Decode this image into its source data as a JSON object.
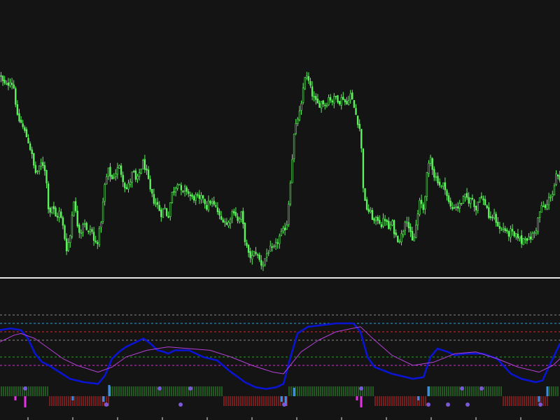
{
  "colors": {
    "background": "#141414",
    "candle": "#5cf25c",
    "separator": "#e6e6e6",
    "oscillator_main": "#0a14d2",
    "oscillator_signal": "#b440d8",
    "level_upper_red": "#c83232",
    "level_upper_blue": "#3c9ed2",
    "level_gray": "#8a8a8a",
    "level_green": "#2f9a2f",
    "level_magenta": "#c83cc8",
    "hist_green": "#2f9a2f",
    "hist_red": "#d22a2a",
    "hist_blue": "#3c8ee6",
    "hist_magenta": "#e632e6",
    "dot": "#7a58d6"
  },
  "chart_data": [
    {
      "type": "candlestick",
      "panel": "price",
      "title": "",
      "grid": false,
      "ylim": [
        0,
        100
      ],
      "series": [
        {
          "values": [
            [
              0,
              88
            ],
            [
              5,
              84
            ],
            [
              10,
              83
            ],
            [
              15,
              86
            ],
            [
              20,
              82
            ],
            [
              25,
              68
            ],
            [
              30,
              66
            ],
            [
              35,
              62
            ],
            [
              40,
              58
            ],
            [
              45,
              52
            ],
            [
              50,
              43
            ],
            [
              55,
              44
            ],
            [
              60,
              48
            ],
            [
              65,
              44
            ],
            [
              70,
              24
            ],
            [
              75,
              28
            ],
            [
              80,
              22
            ],
            [
              85,
              25
            ],
            [
              90,
              18
            ],
            [
              95,
              8
            ],
            [
              100,
              13
            ],
            [
              105,
              32
            ],
            [
              110,
              20
            ],
            [
              115,
              15
            ],
            [
              120,
              22
            ],
            [
              125,
              14
            ],
            [
              130,
              18
            ],
            [
              135,
              10
            ],
            [
              140,
              12
            ],
            [
              145,
              22
            ],
            [
              150,
              38
            ],
            [
              155,
              44
            ],
            [
              160,
              40
            ],
            [
              165,
              43
            ],
            [
              170,
              46
            ],
            [
              175,
              41
            ],
            [
              180,
              35
            ],
            [
              185,
              38
            ],
            [
              190,
              44
            ],
            [
              195,
              38
            ],
            [
              200,
              44
            ],
            [
              205,
              48
            ],
            [
              210,
              42
            ],
            [
              215,
              34
            ],
            [
              220,
              30
            ],
            [
              225,
              28
            ],
            [
              230,
              24
            ],
            [
              235,
              27
            ],
            [
              240,
              22
            ],
            [
              245,
              33
            ],
            [
              250,
              36
            ],
            [
              255,
              40
            ],
            [
              260,
              32
            ],
            [
              265,
              36
            ],
            [
              270,
              33
            ],
            [
              275,
              31
            ],
            [
              280,
              32
            ],
            [
              285,
              30
            ],
            [
              290,
              32
            ],
            [
              295,
              27
            ],
            [
              300,
              30
            ],
            [
              305,
              28
            ],
            [
              310,
              26
            ],
            [
              315,
              21
            ],
            [
              320,
              22
            ],
            [
              325,
              18
            ],
            [
              330,
              24
            ],
            [
              335,
              26
            ],
            [
              340,
              20
            ],
            [
              345,
              24
            ],
            [
              350,
              12
            ],
            [
              355,
              5
            ],
            [
              360,
              4
            ],
            [
              365,
              7
            ],
            [
              370,
              3
            ],
            [
              375,
              0
            ],
            [
              380,
              5
            ],
            [
              385,
              8
            ],
            [
              390,
              7
            ],
            [
              395,
              10
            ],
            [
              400,
              14
            ],
            [
              405,
              16
            ],
            [
              410,
              20
            ],
            [
              415,
              40
            ],
            [
              420,
              60
            ],
            [
              425,
              68
            ],
            [
              430,
              72
            ],
            [
              435,
              88
            ],
            [
              440,
              86
            ],
            [
              445,
              80
            ],
            [
              450,
              76
            ],
            [
              455,
              74
            ],
            [
              460,
              76
            ],
            [
              465,
              74
            ],
            [
              470,
              78
            ],
            [
              475,
              76
            ],
            [
              480,
              78
            ],
            [
              485,
              76
            ],
            [
              490,
              78
            ],
            [
              495,
              74
            ],
            [
              500,
              80
            ],
            [
              505,
              74
            ],
            [
              510,
              68
            ],
            [
              515,
              62
            ],
            [
              520,
              30
            ],
            [
              525,
              26
            ],
            [
              530,
              24
            ],
            [
              535,
              20
            ],
            [
              540,
              22
            ],
            [
              545,
              19
            ],
            [
              550,
              22
            ],
            [
              555,
              17
            ],
            [
              560,
              20
            ],
            [
              565,
              14
            ],
            [
              570,
              12
            ],
            [
              575,
              15
            ],
            [
              580,
              24
            ],
            [
              585,
              16
            ],
            [
              590,
              10
            ],
            [
              595,
              20
            ],
            [
              600,
              30
            ],
            [
              605,
              26
            ],
            [
              610,
              42
            ],
            [
              615,
              50
            ],
            [
              620,
              42
            ],
            [
              625,
              40
            ],
            [
              630,
              36
            ],
            [
              635,
              38
            ],
            [
              640,
              30
            ],
            [
              645,
              26
            ],
            [
              650,
              28
            ],
            [
              655,
              27
            ],
            [
              660,
              30
            ],
            [
              665,
              32
            ],
            [
              670,
              30
            ],
            [
              675,
              31
            ],
            [
              680,
              26
            ],
            [
              685,
              33
            ],
            [
              690,
              30
            ],
            [
              695,
              28
            ],
            [
              700,
              20
            ],
            [
              705,
              24
            ],
            [
              710,
              20
            ],
            [
              715,
              16
            ],
            [
              720,
              18
            ],
            [
              725,
              14
            ],
            [
              730,
              16
            ],
            [
              735,
              13
            ],
            [
              740,
              14
            ],
            [
              745,
              11
            ],
            [
              750,
              14
            ],
            [
              755,
              12
            ],
            [
              760,
              14
            ],
            [
              765,
              16
            ],
            [
              770,
              24
            ],
            [
              775,
              28
            ],
            [
              780,
              26
            ],
            [
              785,
              32
            ],
            [
              790,
              34
            ],
            [
              795,
              42
            ],
            [
              800,
              38
            ]
          ]
        }
      ]
    },
    {
      "type": "line",
      "panel": "oscillator",
      "title": "",
      "grid": false,
      "ylim": [
        0,
        100
      ],
      "levels": [
        90,
        80,
        70,
        60,
        40,
        30
      ],
      "series": [
        {
          "color_key": "oscillator_main",
          "values": [
            [
              0,
              72
            ],
            [
              15,
              74
            ],
            [
              30,
              72
            ],
            [
              40,
              62
            ],
            [
              50,
              44
            ],
            [
              60,
              34
            ],
            [
              70,
              30
            ],
            [
              85,
              22
            ],
            [
              100,
              14
            ],
            [
              120,
              10
            ],
            [
              140,
              8
            ],
            [
              150,
              18
            ],
            [
              160,
              38
            ],
            [
              170,
              46
            ],
            [
              180,
              52
            ],
            [
              195,
              58
            ],
            [
              205,
              62
            ],
            [
              215,
              56
            ],
            [
              225,
              48
            ],
            [
              235,
              46
            ],
            [
              240,
              44
            ],
            [
              250,
              48
            ],
            [
              270,
              48
            ],
            [
              290,
              40
            ],
            [
              310,
              36
            ],
            [
              330,
              22
            ],
            [
              350,
              10
            ],
            [
              365,
              4
            ],
            [
              380,
              2
            ],
            [
              395,
              4
            ],
            [
              405,
              8
            ],
            [
              415,
              40
            ],
            [
              425,
              68
            ],
            [
              440,
              76
            ],
            [
              460,
              78
            ],
            [
              480,
              80
            ],
            [
              505,
              80
            ],
            [
              515,
              70
            ],
            [
              525,
              40
            ],
            [
              535,
              28
            ],
            [
              560,
              20
            ],
            [
              590,
              14
            ],
            [
              605,
              16
            ],
            [
              615,
              40
            ],
            [
              625,
              50
            ],
            [
              640,
              46
            ],
            [
              650,
              42
            ],
            [
              665,
              44
            ],
            [
              690,
              44
            ],
            [
              710,
              38
            ],
            [
              730,
              20
            ],
            [
              745,
              14
            ],
            [
              765,
              10
            ],
            [
              775,
              12
            ],
            [
              785,
              30
            ],
            [
              800,
              56
            ]
          ]
        },
        {
          "color_key": "oscillator_signal",
          "values": [
            [
              0,
              58
            ],
            [
              20,
              66
            ],
            [
              30,
              68
            ],
            [
              50,
              62
            ],
            [
              70,
              50
            ],
            [
              90,
              38
            ],
            [
              110,
              30
            ],
            [
              140,
              22
            ],
            [
              160,
              28
            ],
            [
              180,
              40
            ],
            [
              210,
              48
            ],
            [
              240,
              52
            ],
            [
              270,
              50
            ],
            [
              300,
              48
            ],
            [
              330,
              40
            ],
            [
              360,
              30
            ],
            [
              390,
              22
            ],
            [
              405,
              20
            ],
            [
              430,
              46
            ],
            [
              455,
              60
            ],
            [
              480,
              70
            ],
            [
              515,
              76
            ],
            [
              530,
              64
            ],
            [
              560,
              42
            ],
            [
              590,
              30
            ],
            [
              620,
              34
            ],
            [
              650,
              44
            ],
            [
              680,
              46
            ],
            [
              710,
              38
            ],
            [
              740,
              28
            ],
            [
              770,
              22
            ],
            [
              790,
              30
            ],
            [
              800,
              38
            ]
          ]
        }
      ]
    }
  ]
}
